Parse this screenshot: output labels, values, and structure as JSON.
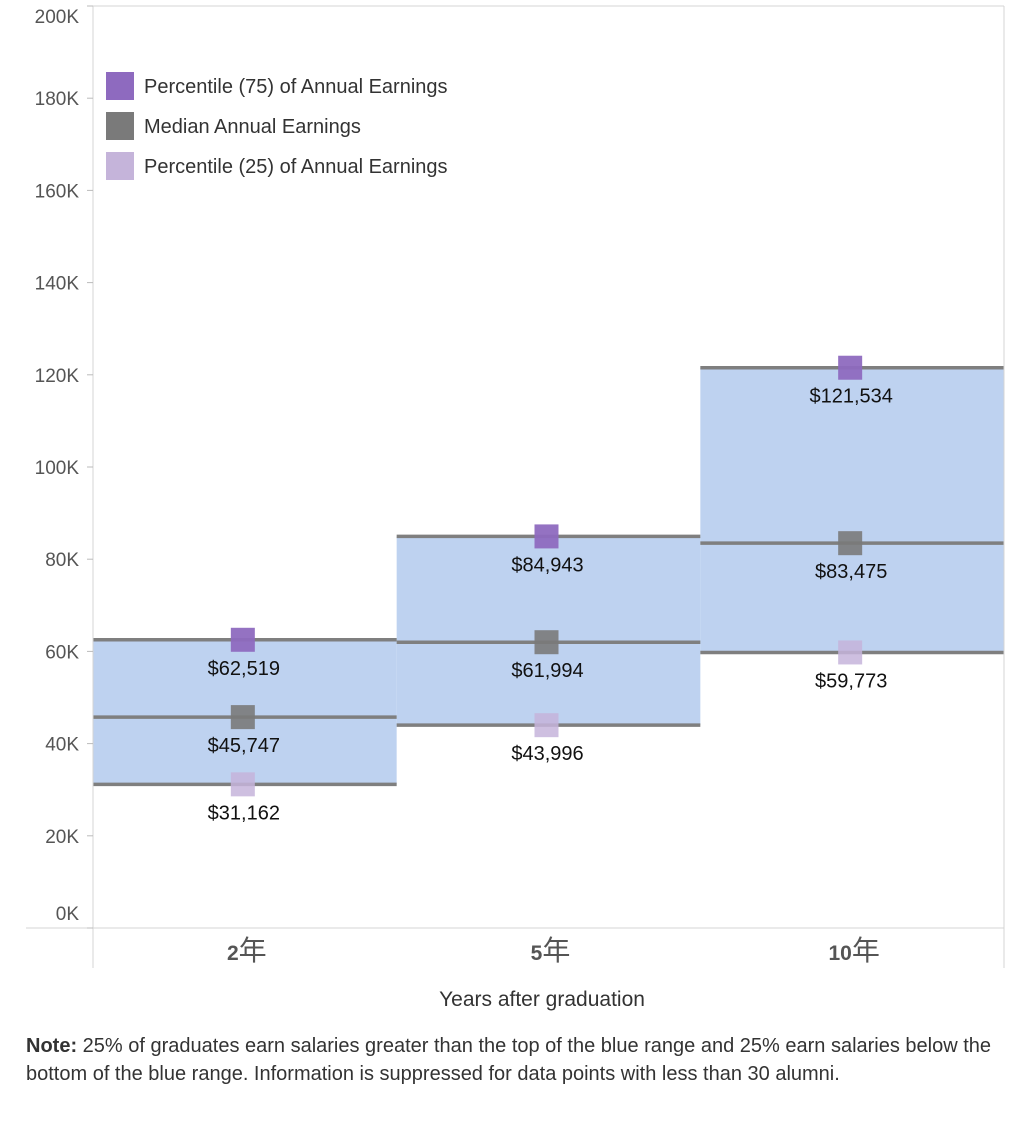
{
  "chart_data": {
    "type": "box-range",
    "title": "",
    "xlabel": "Years after graduation",
    "ylabel": "",
    "ylim": [
      0,
      200000
    ],
    "y_ticks": [
      0,
      20000,
      40000,
      60000,
      80000,
      100000,
      120000,
      140000,
      160000,
      180000,
      200000
    ],
    "y_tick_labels": [
      "0K",
      "20K",
      "40K",
      "60K",
      "80K",
      "100K",
      "120K",
      "140K",
      "160K",
      "180K",
      "200K"
    ],
    "categories": [
      {
        "num": "2",
        "suffix": "年"
      },
      {
        "num": "5",
        "suffix": "年"
      },
      {
        "num": "10",
        "suffix": "年"
      }
    ],
    "series": [
      {
        "name": "Percentile (75) of Annual Earnings",
        "color": "#8e6abf",
        "values": [
          62519,
          84943,
          121534
        ],
        "labels": [
          "$62,519",
          "$84,943",
          "$121,534"
        ]
      },
      {
        "name": "Median Annual Earnings",
        "color": "#7a7a7a",
        "values": [
          45747,
          61994,
          83475
        ],
        "labels": [
          "$45,747",
          "$61,994",
          "$83,475"
        ]
      },
      {
        "name": "Percentile (25) of Annual Earnings",
        "color": "#c5b4da",
        "values": [
          31162,
          43996,
          59773
        ],
        "labels": [
          "$31,162",
          "$43,996",
          "$59,773"
        ]
      }
    ],
    "range_color": "#bed2f0",
    "line_color": "#7f7f7f",
    "grid": false,
    "legend_position": "top-left"
  },
  "note": {
    "bold": "Note:",
    "text": " 25% of graduates earn salaries greater than the top of the blue range and 25% earn salaries below the bottom of the blue range. Information is suppressed for data points with less than 30 alumni."
  }
}
